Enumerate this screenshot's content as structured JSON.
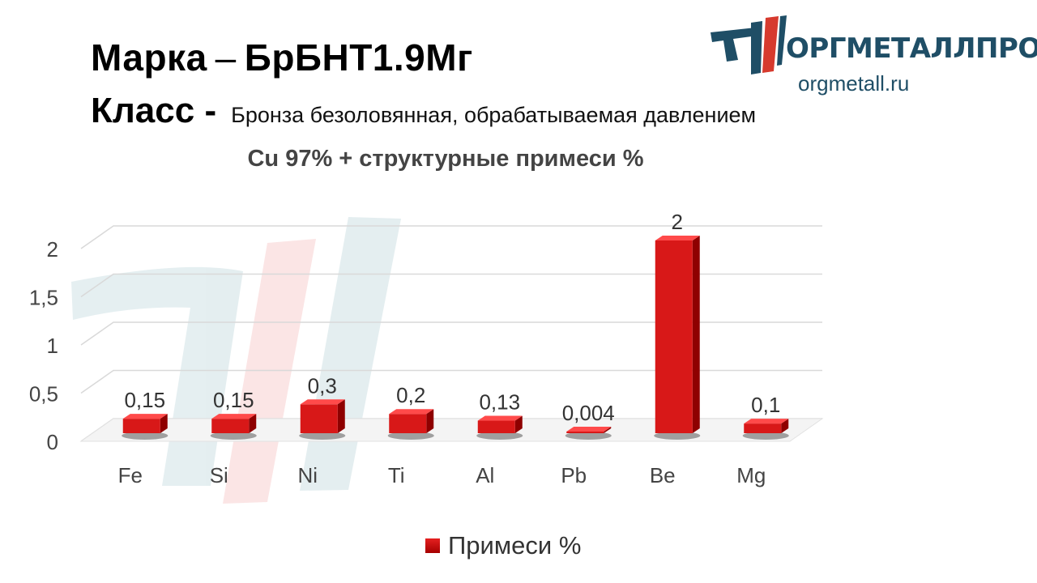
{
  "header": {
    "brand_label": "Марка",
    "dash": "–",
    "grade": "БрБНТ1.9Мг",
    "class_label": "Класс -",
    "class_value": "Бронза безоловянная, обрабатываемая давлением"
  },
  "logo": {
    "name": "ОРГМЕТАЛЛПРОМ",
    "url": "orgmetall.ru"
  },
  "colors": {
    "bar": "#d81818",
    "bar_dark": "#8e0000",
    "bar_light": "#ff4a4a",
    "logo_blue": "#1f4e66",
    "logo_red": "#d63a2e"
  },
  "chart_data": {
    "type": "bar",
    "title": "Cu 97% + структурные примеси %",
    "categories": [
      "Fe",
      "Si",
      "Ni",
      "Ti",
      "Al",
      "Pb",
      "Be",
      "Mg"
    ],
    "series": [
      {
        "name": "Примеси %",
        "values": [
          0.15,
          0.15,
          0.3,
          0.2,
          0.13,
          0.004,
          2,
          0.1
        ],
        "labels": [
          "0,15",
          "0,15",
          "0,3",
          "0,2",
          "0,13",
          "0,004",
          "2",
          "0,1"
        ]
      }
    ],
    "y_ticks": [
      {
        "value": 0,
        "label": "0"
      },
      {
        "value": 0.5,
        "label": "0,5"
      },
      {
        "value": 1,
        "label": "1"
      },
      {
        "value": 1.5,
        "label": "1,5"
      },
      {
        "value": 2,
        "label": "2"
      }
    ],
    "ylim": [
      0,
      2
    ],
    "grid": true,
    "legend_position": "bottom"
  }
}
